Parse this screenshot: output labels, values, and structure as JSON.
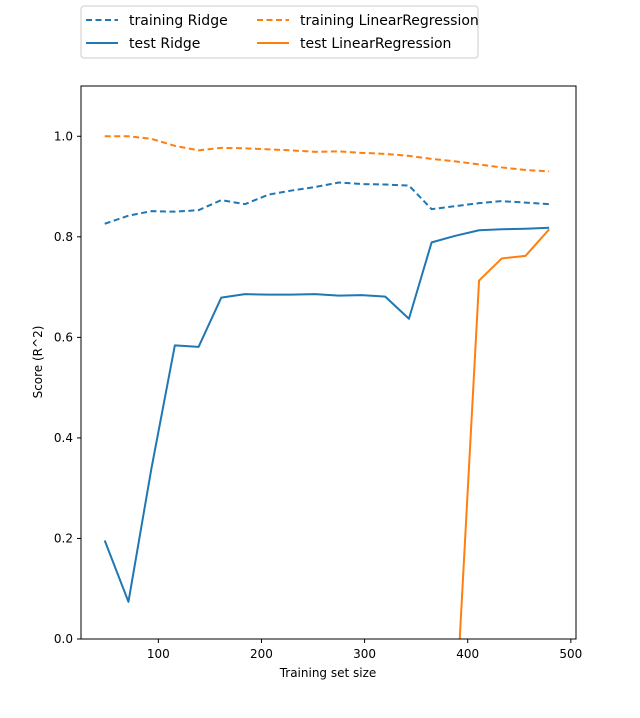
{
  "chart_data": {
    "type": "line",
    "xlabel": "Training set size",
    "ylabel": "Score (R^2)",
    "xlim": [
      25,
      505
    ],
    "ylim": [
      0,
      1.1
    ],
    "xticks": [
      100,
      200,
      300,
      400,
      500
    ],
    "yticks": [
      0.0,
      0.2,
      0.4,
      0.6,
      0.8,
      1.0
    ],
    "xtick_labels": [
      "100",
      "200",
      "300",
      "400",
      "500"
    ],
    "ytick_labels": [
      "0.0",
      "0.2",
      "0.4",
      "0.6",
      "0.8",
      "1.0"
    ],
    "grid": false,
    "legend": "top-left, outside above plot, 2 columns",
    "series": [
      {
        "name": "training Ridge",
        "color": "#1f77b4",
        "style": "dashed",
        "points": [
          [
            48,
            0.826
          ],
          [
            71,
            0.842
          ],
          [
            93,
            0.851
          ],
          [
            116,
            0.85
          ],
          [
            139,
            0.853
          ],
          [
            161,
            0.873
          ],
          [
            184,
            0.865
          ],
          [
            207,
            0.884
          ],
          [
            229,
            0.892
          ],
          [
            252,
            0.899
          ],
          [
            275,
            0.908
          ],
          [
            297,
            0.905
          ],
          [
            320,
            0.904
          ],
          [
            343,
            0.902
          ],
          [
            365,
            0.855
          ],
          [
            388,
            0.861
          ],
          [
            411,
            0.867
          ],
          [
            433,
            0.871
          ],
          [
            456,
            0.868
          ],
          [
            479,
            0.865
          ]
        ]
      },
      {
        "name": "test Ridge",
        "color": "#1f77b4",
        "style": "solid",
        "points": [
          [
            48,
            0.196
          ],
          [
            71,
            0.074
          ],
          [
            93,
            0.336
          ],
          [
            116,
            0.584
          ],
          [
            139,
            0.581
          ],
          [
            161,
            0.679
          ],
          [
            184,
            0.686
          ],
          [
            207,
            0.685
          ],
          [
            229,
            0.685
          ],
          [
            252,
            0.686
          ],
          [
            275,
            0.683
          ],
          [
            297,
            0.684
          ],
          [
            320,
            0.681
          ],
          [
            343,
            0.637
          ],
          [
            365,
            0.789
          ],
          [
            388,
            0.802
          ],
          [
            411,
            0.813
          ],
          [
            433,
            0.815
          ],
          [
            456,
            0.816
          ],
          [
            479,
            0.818
          ]
        ]
      },
      {
        "name": "training LinearRegression",
        "color": "#ff7f0e",
        "style": "dashed",
        "points": [
          [
            48,
            1.0
          ],
          [
            71,
            1.0
          ],
          [
            93,
            0.995
          ],
          [
            116,
            0.981
          ],
          [
            139,
            0.972
          ],
          [
            161,
            0.977
          ],
          [
            184,
            0.976
          ],
          [
            207,
            0.974
          ],
          [
            229,
            0.972
          ],
          [
            252,
            0.969
          ],
          [
            275,
            0.97
          ],
          [
            297,
            0.967
          ],
          [
            320,
            0.965
          ],
          [
            343,
            0.961
          ],
          [
            365,
            0.955
          ],
          [
            388,
            0.95
          ],
          [
            411,
            0.944
          ],
          [
            433,
            0.938
          ],
          [
            456,
            0.933
          ],
          [
            479,
            0.93
          ]
        ]
      },
      {
        "name": "test LinearRegression",
        "color": "#ff7f0e",
        "style": "solid",
        "points": [
          [
            388,
            0.0
          ],
          [
            411,
            0.713
          ],
          [
            433,
            0.757
          ],
          [
            456,
            0.762
          ],
          [
            479,
            0.815
          ]
        ],
        "note_clip": "continues below axis"
      }
    ]
  }
}
